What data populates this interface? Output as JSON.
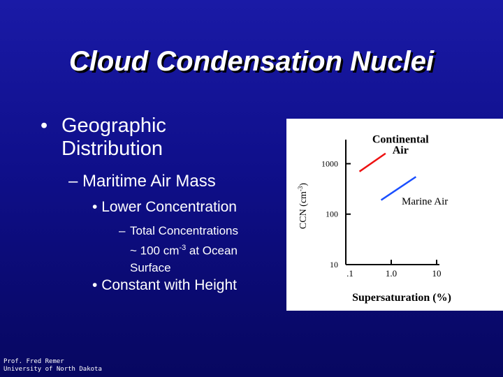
{
  "slide": {
    "title": "Cloud Condensation Nuclei",
    "bullets": {
      "level1": "Geographic Distribution",
      "level2": "Maritime Air Mass",
      "level3a": "Lower Concentration",
      "level4_line1": "Total Concentrations",
      "level4_line2_prefix": "~ 100 cm",
      "level4_line2_sup": "-3",
      "level4_line2_suffix": " at Ocean",
      "level4_line3": "Surface",
      "level3b": "Constant with Height"
    },
    "footer": {
      "line1": "Prof. Fred Remer",
      "line2": "University of North Dakota"
    }
  },
  "chart_data": {
    "type": "line",
    "xlabel": "Supersaturation (%)",
    "ylabel_main": "CCN (cm",
    "ylabel_sup": "-3",
    "ylabel_end": ")",
    "x_scale": "log",
    "y_scale": "log",
    "xlim": [
      0.1,
      10
    ],
    "ylim": [
      10,
      3000
    ],
    "x_ticks": [
      {
        "value": 0.1,
        "label": ".1"
      },
      {
        "value": 1,
        "label": "1.0"
      },
      {
        "value": 10,
        "label": "10"
      }
    ],
    "y_ticks": [
      {
        "value": 10,
        "label": "10"
      },
      {
        "value": 100,
        "label": "100"
      },
      {
        "value": 1000,
        "label": "1000"
      }
    ],
    "grid": false,
    "series": [
      {
        "name": "Continental Air",
        "color": "#ee1111",
        "x": [
          0.2,
          0.75
        ],
        "y": [
          700,
          1600
        ]
      },
      {
        "name": "Marine Air",
        "color": "#1a4fff",
        "x": [
          0.6,
          3.5
        ],
        "y": [
          190,
          550
        ]
      }
    ],
    "annotations": [
      {
        "text": "Continental",
        "x": 1.6,
        "y": 2600
      },
      {
        "text": "Air",
        "x": 1.6,
        "y": 1580
      },
      {
        "text": "Marine Air",
        "x": 5.5,
        "y": 155
      }
    ]
  }
}
